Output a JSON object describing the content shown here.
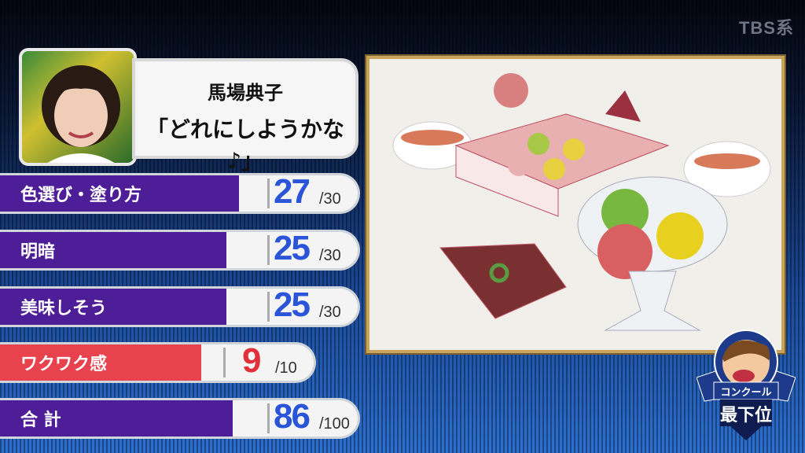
{
  "channel_logo": "TBS系",
  "contestant": {
    "name": "馬場典子",
    "title": "「どれにしようかな♪」"
  },
  "scores": [
    {
      "label": "色選び・塗り方",
      "score": "27",
      "max": "/30",
      "color": "#4e1e98"
    },
    {
      "label": "明暗",
      "score": "25",
      "max": "/30",
      "color": "#4e1e98"
    },
    {
      "label": "美味しそう",
      "score": "25",
      "max": "/30",
      "color": "#4e1e98"
    },
    {
      "label": "ワクワク感",
      "score": "9",
      "max": "/10",
      "color": "#e8424f"
    },
    {
      "label": "合 計",
      "score": "86",
      "max": "/100",
      "color": "#4e1e98"
    }
  ],
  "rank_badge": {
    "top": "コンクール",
    "bottom": "最下位"
  },
  "colors": {
    "score_blue": "#2a55d8",
    "score_red": "#e0303a",
    "frame_gold": "#c8a45a"
  }
}
